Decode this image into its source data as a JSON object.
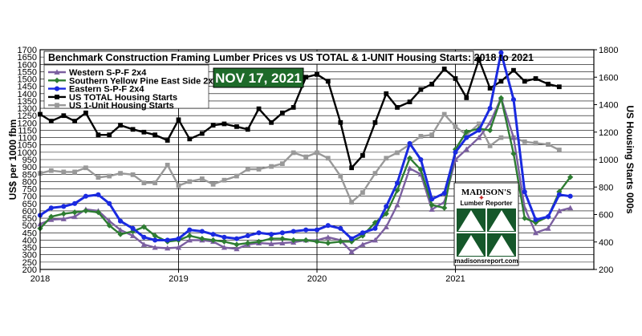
{
  "chart_data": {
    "type": "line",
    "title": "Benchmark Construction  Framing Lumber Prices vs US TOTAL & 1-UNIT Housing Starts: 2018 to 2021",
    "date_badge": "NOV 17, 2021",
    "ylabel_left": "US$ per 1000 fbm",
    "ylabel_right": "US Housing Starts 000s",
    "ylim_left": [
      200,
      1700
    ],
    "ylim_right": [
      200,
      1800
    ],
    "yticks_left": [
      "200",
      "250",
      "300",
      "350",
      "400",
      "450",
      "500",
      "550",
      "600",
      "650",
      "700",
      "750",
      "800",
      "850",
      "900",
      "950",
      "1000",
      "1050",
      "1100",
      "1150",
      "1200",
      "1250",
      "1300",
      "1350",
      "1400",
      "1450",
      "1500",
      "1550",
      "1600",
      "1650",
      "1700"
    ],
    "yticks_right": [
      "200",
      "400",
      "600",
      "800",
      "1000",
      "1200",
      "1400",
      "1600",
      "1800"
    ],
    "xticks": [
      "2018",
      "2019",
      "2020",
      "2021"
    ],
    "grid": true,
    "legend_position": "top-left",
    "series": [
      {
        "name": "Western S-P-F 2x4",
        "axis": "left",
        "color": "#7b5fa0",
        "marker": "triangle",
        "points": [
          [
            2018.0,
            510
          ],
          [
            2018.08,
            540
          ],
          [
            2018.17,
            545
          ],
          [
            2018.25,
            560
          ],
          [
            2018.33,
            610
          ],
          [
            2018.42,
            600
          ],
          [
            2018.5,
            530
          ],
          [
            2018.58,
            470
          ],
          [
            2018.67,
            430
          ],
          [
            2018.75,
            370
          ],
          [
            2018.83,
            350
          ],
          [
            2018.92,
            345
          ],
          [
            2019.0,
            350
          ],
          [
            2019.08,
            400
          ],
          [
            2019.17,
            400
          ],
          [
            2019.25,
            390
          ],
          [
            2019.33,
            350
          ],
          [
            2019.42,
            340
          ],
          [
            2019.5,
            370
          ],
          [
            2019.58,
            380
          ],
          [
            2019.67,
            375
          ],
          [
            2019.75,
            380
          ],
          [
            2019.83,
            385
          ],
          [
            2019.92,
            400
          ],
          [
            2020.0,
            400
          ],
          [
            2020.08,
            420
          ],
          [
            2020.17,
            400
          ],
          [
            2020.25,
            320
          ],
          [
            2020.33,
            370
          ],
          [
            2020.42,
            400
          ],
          [
            2020.5,
            490
          ],
          [
            2020.58,
            640
          ],
          [
            2020.67,
            890
          ],
          [
            2020.75,
            850
          ],
          [
            2020.83,
            610
          ],
          [
            2020.92,
            660
          ],
          [
            2021.0,
            950
          ],
          [
            2021.08,
            1020
          ],
          [
            2021.17,
            1100
          ],
          [
            2021.25,
            1200
          ],
          [
            2021.33,
            1370
          ],
          [
            2021.42,
            1100
          ],
          [
            2021.5,
            620
          ],
          [
            2021.58,
            450
          ],
          [
            2021.67,
            480
          ],
          [
            2021.75,
            600
          ],
          [
            2021.83,
            620
          ]
        ]
      },
      {
        "name": "Southern Yellow Pine East Side 2x4",
        "axis": "left",
        "color": "#2e7d32",
        "marker": "diamond",
        "points": [
          [
            2018.0,
            480
          ],
          [
            2018.08,
            560
          ],
          [
            2018.17,
            580
          ],
          [
            2018.25,
            590
          ],
          [
            2018.33,
            600
          ],
          [
            2018.42,
            590
          ],
          [
            2018.5,
            500
          ],
          [
            2018.58,
            440
          ],
          [
            2018.67,
            460
          ],
          [
            2018.75,
            490
          ],
          [
            2018.83,
            430
          ],
          [
            2018.92,
            390
          ],
          [
            2019.0,
            400
          ],
          [
            2019.08,
            430
          ],
          [
            2019.17,
            410
          ],
          [
            2019.25,
            400
          ],
          [
            2019.33,
            390
          ],
          [
            2019.42,
            370
          ],
          [
            2019.5,
            380
          ],
          [
            2019.58,
            390
          ],
          [
            2019.67,
            410
          ],
          [
            2019.75,
            410
          ],
          [
            2019.83,
            400
          ],
          [
            2019.92,
            400
          ],
          [
            2020.0,
            390
          ],
          [
            2020.08,
            380
          ],
          [
            2020.17,
            390
          ],
          [
            2020.25,
            390
          ],
          [
            2020.33,
            430
          ],
          [
            2020.42,
            520
          ],
          [
            2020.5,
            580
          ],
          [
            2020.58,
            740
          ],
          [
            2020.67,
            960
          ],
          [
            2020.75,
            880
          ],
          [
            2020.83,
            640
          ],
          [
            2020.92,
            620
          ],
          [
            2021.0,
            1020
          ],
          [
            2021.08,
            1140
          ],
          [
            2021.17,
            1160
          ],
          [
            2021.25,
            1150
          ],
          [
            2021.33,
            1370
          ],
          [
            2021.42,
            990
          ],
          [
            2021.5,
            550
          ],
          [
            2021.58,
            520
          ],
          [
            2021.67,
            560
          ],
          [
            2021.75,
            730
          ],
          [
            2021.83,
            830
          ]
        ]
      },
      {
        "name": "Eastern S-P-F 2x4",
        "axis": "left",
        "color": "#1a2ae0",
        "marker": "circle",
        "points": [
          [
            2018.0,
            570
          ],
          [
            2018.08,
            620
          ],
          [
            2018.17,
            630
          ],
          [
            2018.25,
            650
          ],
          [
            2018.33,
            700
          ],
          [
            2018.42,
            710
          ],
          [
            2018.5,
            650
          ],
          [
            2018.58,
            530
          ],
          [
            2018.67,
            480
          ],
          [
            2018.75,
            420
          ],
          [
            2018.83,
            400
          ],
          [
            2018.92,
            400
          ],
          [
            2019.0,
            410
          ],
          [
            2019.08,
            470
          ],
          [
            2019.17,
            460
          ],
          [
            2019.25,
            440
          ],
          [
            2019.33,
            420
          ],
          [
            2019.42,
            410
          ],
          [
            2019.5,
            430
          ],
          [
            2019.58,
            450
          ],
          [
            2019.67,
            440
          ],
          [
            2019.75,
            450
          ],
          [
            2019.83,
            460
          ],
          [
            2019.92,
            470
          ],
          [
            2020.0,
            470
          ],
          [
            2020.08,
            500
          ],
          [
            2020.17,
            480
          ],
          [
            2020.25,
            410
          ],
          [
            2020.33,
            450
          ],
          [
            2020.42,
            480
          ],
          [
            2020.5,
            630
          ],
          [
            2020.58,
            790
          ],
          [
            2020.67,
            1060
          ],
          [
            2020.75,
            950
          ],
          [
            2020.83,
            680
          ],
          [
            2020.92,
            720
          ],
          [
            2021.0,
            1000
          ],
          [
            2021.08,
            1100
          ],
          [
            2021.17,
            1150
          ],
          [
            2021.25,
            1300
          ],
          [
            2021.33,
            1680
          ],
          [
            2021.42,
            1360
          ],
          [
            2021.5,
            730
          ],
          [
            2021.58,
            540
          ],
          [
            2021.67,
            560
          ],
          [
            2021.75,
            710
          ],
          [
            2021.83,
            700
          ]
        ]
      },
      {
        "name": "US TOTAL Housing Starts",
        "axis": "right",
        "color": "#000000",
        "marker": "square",
        "points": [
          [
            2018.0,
            1330
          ],
          [
            2018.08,
            1280
          ],
          [
            2018.17,
            1320
          ],
          [
            2018.25,
            1280
          ],
          [
            2018.33,
            1340
          ],
          [
            2018.42,
            1180
          ],
          [
            2018.5,
            1180
          ],
          [
            2018.58,
            1250
          ],
          [
            2018.67,
            1220
          ],
          [
            2018.75,
            1200
          ],
          [
            2018.83,
            1180
          ],
          [
            2018.92,
            1140
          ],
          [
            2019.0,
            1290
          ],
          [
            2019.08,
            1150
          ],
          [
            2019.17,
            1190
          ],
          [
            2019.25,
            1250
          ],
          [
            2019.33,
            1260
          ],
          [
            2019.42,
            1240
          ],
          [
            2019.5,
            1220
          ],
          [
            2019.58,
            1370
          ],
          [
            2019.67,
            1270
          ],
          [
            2019.75,
            1340
          ],
          [
            2019.83,
            1380
          ],
          [
            2019.92,
            1600
          ],
          [
            2020.0,
            1620
          ],
          [
            2020.08,
            1570
          ],
          [
            2020.17,
            1270
          ],
          [
            2020.25,
            940
          ],
          [
            2020.33,
            1030
          ],
          [
            2020.42,
            1270
          ],
          [
            2020.5,
            1480
          ],
          [
            2020.58,
            1380
          ],
          [
            2020.67,
            1420
          ],
          [
            2020.75,
            1510
          ],
          [
            2020.83,
            1550
          ],
          [
            2020.92,
            1660
          ],
          [
            2021.0,
            1590
          ],
          [
            2021.08,
            1450
          ],
          [
            2021.17,
            1730
          ],
          [
            2021.25,
            1520
          ],
          [
            2021.33,
            1570
          ],
          [
            2021.42,
            1650
          ],
          [
            2021.5,
            1570
          ],
          [
            2021.58,
            1590
          ],
          [
            2021.67,
            1550
          ],
          [
            2021.75,
            1530
          ]
        ]
      },
      {
        "name": "US 1-Unit Housing Starts",
        "axis": "right",
        "color": "#999999",
        "marker": "square",
        "points": [
          [
            2018.0,
            900
          ],
          [
            2018.08,
            920
          ],
          [
            2018.17,
            910
          ],
          [
            2018.25,
            910
          ],
          [
            2018.33,
            940
          ],
          [
            2018.42,
            870
          ],
          [
            2018.5,
            880
          ],
          [
            2018.58,
            900
          ],
          [
            2018.67,
            890
          ],
          [
            2018.75,
            830
          ],
          [
            2018.83,
            830
          ],
          [
            2018.92,
            960
          ],
          [
            2019.0,
            810
          ],
          [
            2019.08,
            840
          ],
          [
            2019.17,
            860
          ],
          [
            2019.25,
            820
          ],
          [
            2019.33,
            850
          ],
          [
            2019.42,
            880
          ],
          [
            2019.5,
            930
          ],
          [
            2019.58,
            930
          ],
          [
            2019.67,
            950
          ],
          [
            2019.75,
            970
          ],
          [
            2019.83,
            1050
          ],
          [
            2019.92,
            1020
          ],
          [
            2020.0,
            1050
          ],
          [
            2020.08,
            1010
          ],
          [
            2020.17,
            880
          ],
          [
            2020.25,
            690
          ],
          [
            2020.33,
            760
          ],
          [
            2020.42,
            900
          ],
          [
            2020.5,
            1010
          ],
          [
            2020.58,
            1050
          ],
          [
            2020.67,
            1110
          ],
          [
            2020.75,
            1170
          ],
          [
            2020.83,
            1180
          ],
          [
            2020.92,
            1330
          ],
          [
            2021.0,
            1240
          ],
          [
            2021.08,
            1180
          ],
          [
            2021.17,
            1260
          ],
          [
            2021.25,
            1100
          ],
          [
            2021.33,
            1160
          ],
          [
            2021.42,
            1160
          ],
          [
            2021.5,
            1130
          ],
          [
            2021.58,
            1120
          ],
          [
            2021.67,
            1110
          ],
          [
            2021.75,
            1070
          ]
        ]
      }
    ]
  },
  "logo": {
    "name": "MADISON'S",
    "subtitle": "Lumber Reporter",
    "url": "madisonsreport.com"
  }
}
